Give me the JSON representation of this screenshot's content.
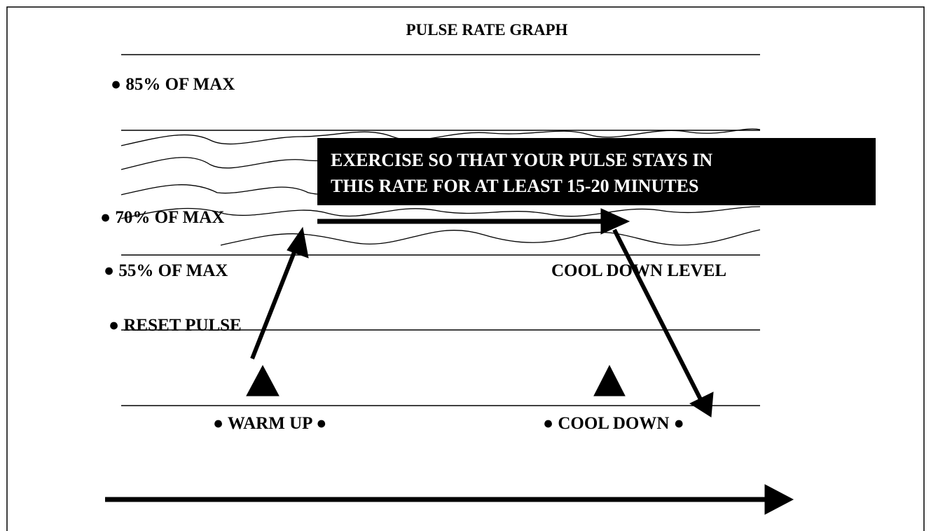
{
  "title": "PULSE RATE GRAPH",
  "levels": [
    "● 85% OF MAX",
    "● 70% OF MAX",
    "● 55% OF MAX",
    "● RESET PULSE"
  ],
  "callout": {
    "lines": [
      "EXERCISE SO THAT YOUR PULSE STAYS IN",
      "THIS RATE FOR AT LEAST 15-20 MINUTES"
    ]
  },
  "cool_down_level": "COOL DOWN LEVEL",
  "phases": [
    "● WARM UP ●",
    "● COOL DOWN ●"
  ]
}
